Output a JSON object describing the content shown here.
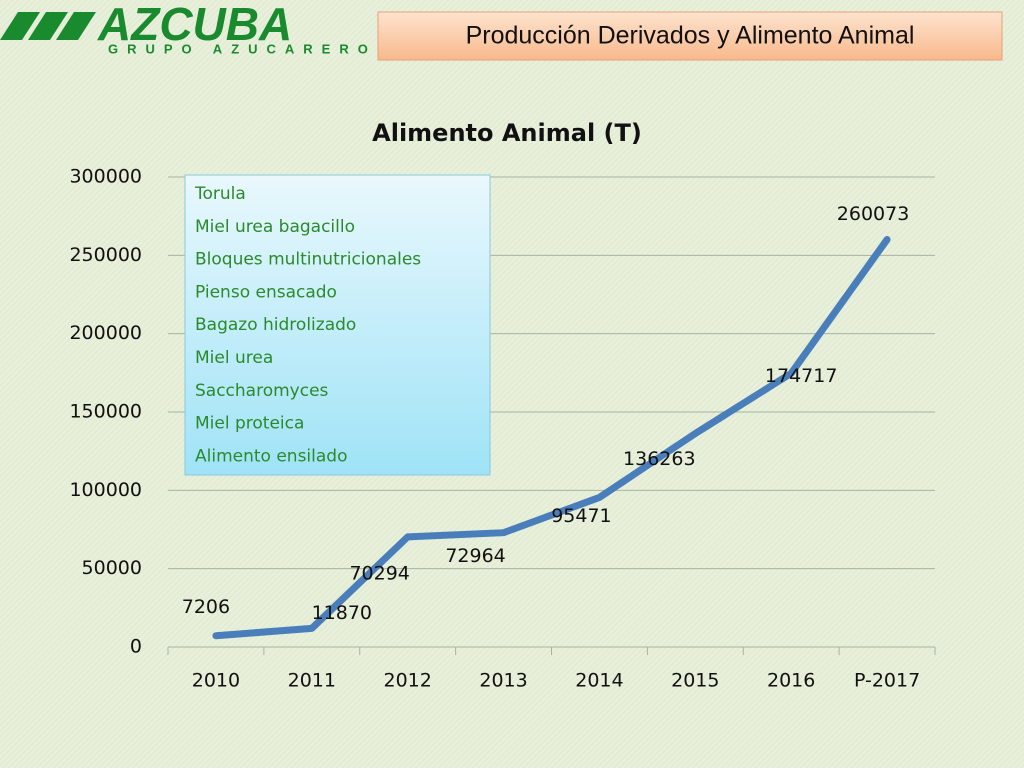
{
  "header": {
    "logo": "AZCUBA",
    "logo_subtitle": "GRUPO AZUCARERO",
    "title": "Producción Derivados y  Alimento Animal"
  },
  "chart_data": {
    "type": "line",
    "title": "Alimento Animal (T)",
    "categories": [
      "2010",
      "2011",
      "2012",
      "2013",
      "2014",
      "2015",
      "2016",
      "P-2017"
    ],
    "values": [
      7206,
      11870,
      70294,
      72964,
      95471,
      136263,
      174717,
      260073
    ],
    "color": "#4a7ebb",
    "ylim": [
      0,
      300000
    ],
    "yticks": [
      0,
      50000,
      100000,
      150000,
      200000,
      250000,
      300000
    ],
    "grid": true,
    "annotations": [
      "Torula",
      "Miel urea bagacillo",
      "Bloques multinutricionales",
      "Pienso ensacado",
      "Bagazo hidrolizado",
      "Miel urea",
      "Saccharomyces",
      "Miel proteica",
      "Alimento ensilado"
    ]
  }
}
